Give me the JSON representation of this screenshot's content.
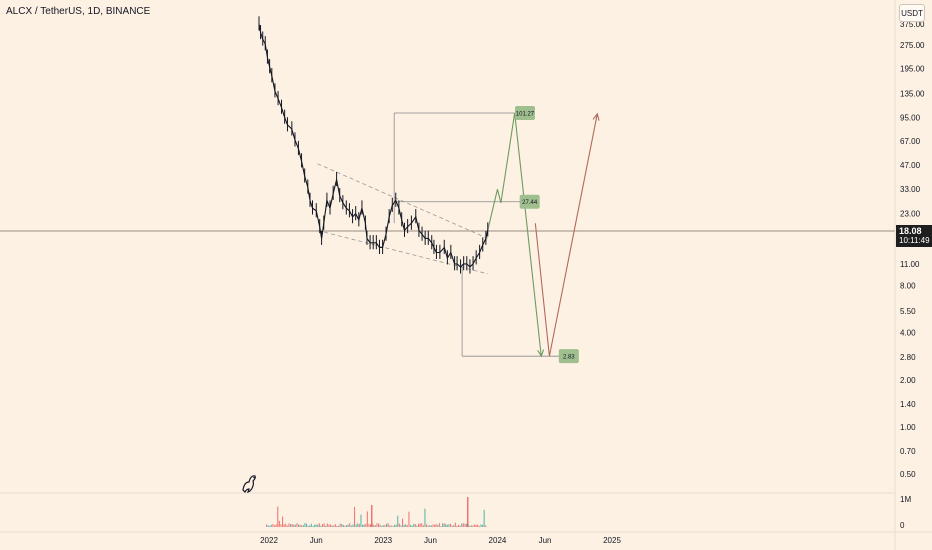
{
  "header": {
    "title": "ALCX / TetherUS, 1D, BINANCE",
    "currency": "USDT"
  },
  "current_price": {
    "value": "18.08",
    "countdown": "10:11:49"
  },
  "chart_data": {
    "type": "line",
    "price_axis": {
      "scale": "log",
      "tick_labels": [
        "375.00",
        "275.00",
        "195.00",
        "135.00",
        "95.00",
        "67.00",
        "47.00",
        "33.00",
        "23.00",
        "11.00",
        "8.00",
        "5.50",
        "4.00",
        "2.80",
        "2.00",
        "1.40",
        "1.00",
        "0.70",
        "0.50"
      ],
      "tick_values": [
        375,
        275,
        195,
        135,
        95,
        67,
        47,
        33,
        23,
        11,
        8,
        5.5,
        4,
        2.8,
        2,
        1.4,
        1,
        0.7,
        0.5
      ]
    },
    "volume_axis": {
      "tick_labels": [
        "1M",
        "0"
      ],
      "tick_values": [
        1000000,
        0
      ]
    },
    "time_axis": {
      "tick_labels": [
        "2022",
        "Jun",
        "2023",
        "Jun",
        "2024",
        "Jun",
        "2025"
      ],
      "tick_dates": [
        "2022-01-01",
        "2022-06-01",
        "2023-01-01",
        "2023-06-01",
        "2024-01-01",
        "2024-06-01",
        "2025-01-01"
      ]
    },
    "price_history": [
      [
        "2021-11-30",
        375
      ],
      [
        "2021-12-05",
        330
      ],
      [
        "2021-12-12",
        300
      ],
      [
        "2021-12-20",
        280
      ],
      [
        "2021-12-27",
        230
      ],
      [
        "2022-01-03",
        200
      ],
      [
        "2022-01-10",
        175
      ],
      [
        "2022-01-20",
        140
      ],
      [
        "2022-01-30",
        125
      ],
      [
        "2022-02-10",
        110
      ],
      [
        "2022-02-20",
        95
      ],
      [
        "2022-03-01",
        85
      ],
      [
        "2022-03-15",
        80
      ],
      [
        "2022-03-25",
        68
      ],
      [
        "2022-04-05",
        60
      ],
      [
        "2022-04-15",
        50
      ],
      [
        "2022-04-25",
        40
      ],
      [
        "2022-05-05",
        34
      ],
      [
        "2022-05-12",
        28
      ],
      [
        "2022-05-20",
        25
      ],
      [
        "2022-06-01",
        24
      ],
      [
        "2022-06-12",
        19
      ],
      [
        "2022-06-18",
        16
      ],
      [
        "2022-06-25",
        20
      ],
      [
        "2022-07-05",
        28
      ],
      [
        "2022-07-15",
        25
      ],
      [
        "2022-07-25",
        31
      ],
      [
        "2022-08-05",
        38
      ],
      [
        "2022-08-15",
        30
      ],
      [
        "2022-08-25",
        27
      ],
      [
        "2022-09-05",
        25
      ],
      [
        "2022-09-15",
        24
      ],
      [
        "2022-09-25",
        22
      ],
      [
        "2022-10-05",
        23
      ],
      [
        "2022-10-15",
        21
      ],
      [
        "2022-10-25",
        25
      ],
      [
        "2022-11-05",
        20
      ],
      [
        "2022-11-10",
        16
      ],
      [
        "2022-11-20",
        15
      ],
      [
        "2022-11-30",
        15
      ],
      [
        "2022-12-10",
        15
      ],
      [
        "2022-12-20",
        14
      ],
      [
        "2022-12-30",
        14
      ],
      [
        "2023-01-10",
        17
      ],
      [
        "2023-01-20",
        22
      ],
      [
        "2023-01-30",
        26
      ],
      [
        "2023-02-10",
        28
      ],
      [
        "2023-02-20",
        25
      ],
      [
        "2023-03-01",
        21
      ],
      [
        "2023-03-10",
        18
      ],
      [
        "2023-03-20",
        19
      ],
      [
        "2023-04-01",
        20
      ],
      [
        "2023-04-15",
        22
      ],
      [
        "2023-04-25",
        18
      ],
      [
        "2023-05-05",
        17
      ],
      [
        "2023-05-15",
        16
      ],
      [
        "2023-05-25",
        16
      ],
      [
        "2023-06-05",
        15
      ],
      [
        "2023-06-12",
        14
      ],
      [
        "2023-06-20",
        13
      ],
      [
        "2023-07-01",
        13
      ],
      [
        "2023-07-15",
        14
      ],
      [
        "2023-07-25",
        12
      ],
      [
        "2023-08-05",
        13
      ],
      [
        "2023-08-17",
        11
      ],
      [
        "2023-08-25",
        11
      ],
      [
        "2023-09-05",
        10.5
      ],
      [
        "2023-09-15",
        11
      ],
      [
        "2023-09-25",
        11
      ],
      [
        "2023-10-05",
        10.5
      ],
      [
        "2023-10-15",
        11
      ],
      [
        "2023-10-25",
        12
      ],
      [
        "2023-11-05",
        13
      ],
      [
        "2023-11-15",
        14.5
      ],
      [
        "2023-11-25",
        16
      ],
      [
        "2023-12-01",
        18.08
      ]
    ],
    "wedge": {
      "upper": [
        [
          "2022-06-05",
          48
        ],
        [
          "2023-12-01",
          16
        ]
      ],
      "lower": [
        [
          "2022-06-05",
          18
        ],
        [
          "2023-12-01",
          9.5
        ]
      ]
    },
    "targets": [
      {
        "label": "101.27",
        "value": 101.27
      },
      {
        "label": "27.44",
        "value": 27.44
      },
      {
        "label": "2.83",
        "value": 2.83
      }
    ],
    "projection_green": [
      [
        "2023-12-01",
        18.08
      ],
      [
        "2024-01-01",
        33
      ],
      [
        "2024-01-12",
        27
      ],
      [
        "2024-02-25",
        101.27
      ],
      [
        "2024-05-20",
        2.83
      ]
    ],
    "projection_red": [
      [
        "2024-05-01",
        20
      ],
      [
        "2024-06-15",
        2.83
      ],
      [
        "2024-11-15",
        100
      ]
    ]
  }
}
